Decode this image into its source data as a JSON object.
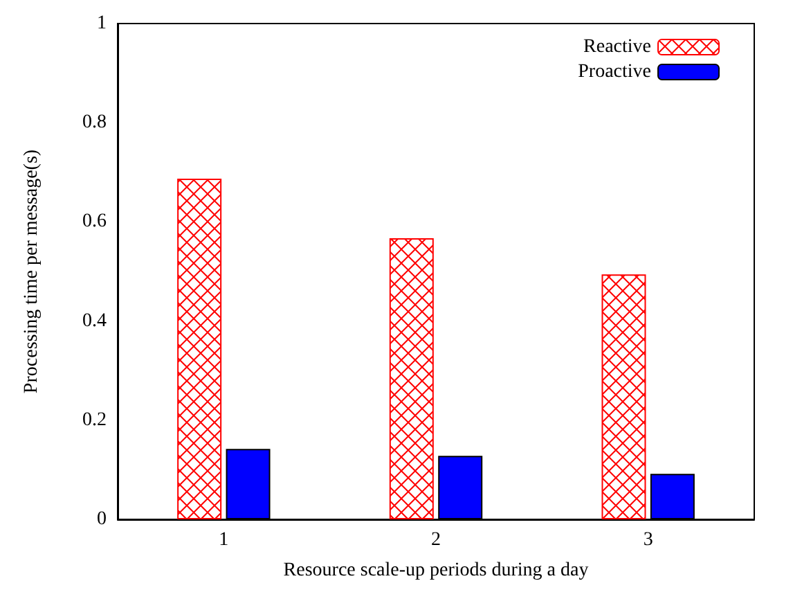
{
  "chart_data": {
    "type": "bar",
    "xlabel": "Resource scale-up periods during a day",
    "ylabel": "Processing time per message(s)",
    "categories": [
      "1",
      "2",
      "3"
    ],
    "series": [
      {
        "name": "Reactive",
        "color": "#ff0000",
        "values": [
          0.687,
          0.567,
          0.494
        ]
      },
      {
        "name": "Proactive",
        "color": "#0000ff",
        "values": [
          0.142,
          0.128,
          0.092
        ]
      }
    ],
    "ylim": [
      0,
      1
    ],
    "yticks": [
      0,
      0.2,
      0.4,
      0.6,
      0.8,
      1
    ],
    "grid": false,
    "legend": "top right"
  }
}
